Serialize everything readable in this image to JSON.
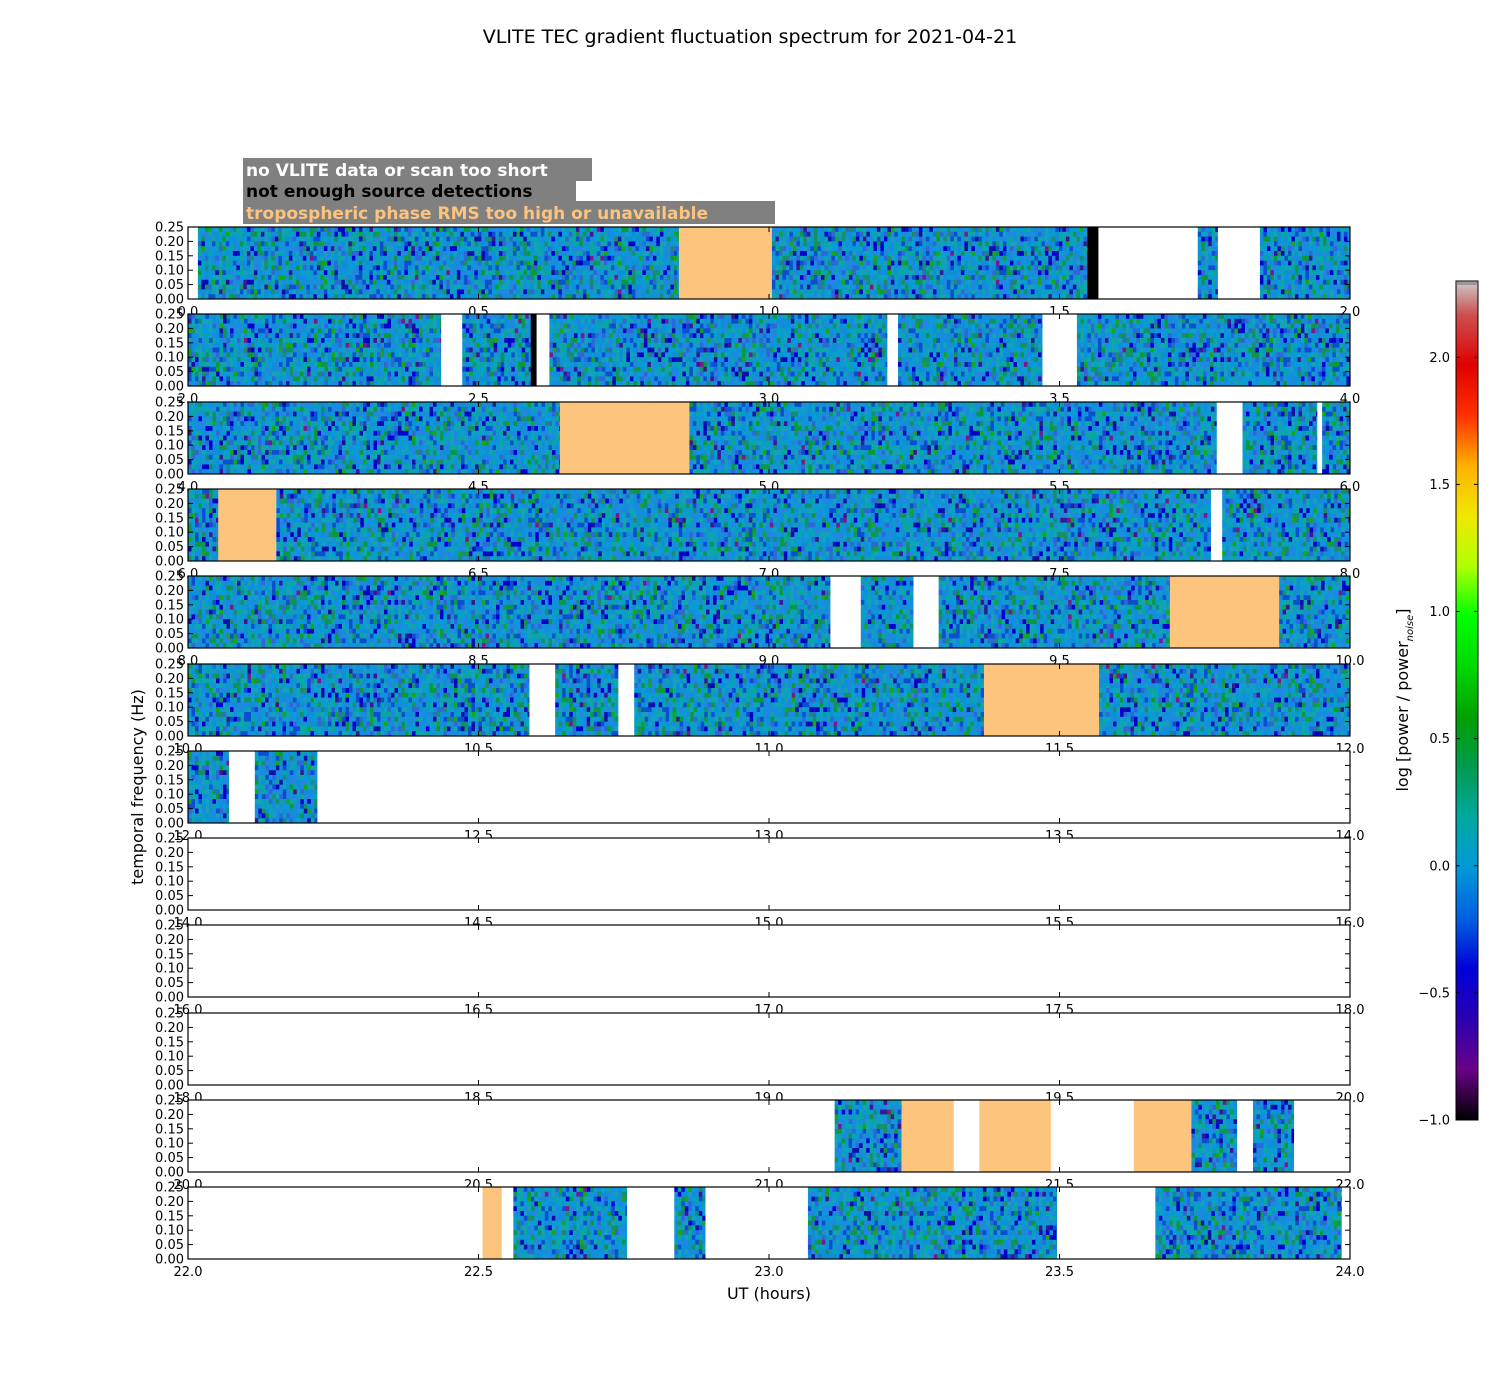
{
  "chart_data": {
    "type": "heatmap",
    "title": "VLITE TEC gradient fluctuation spectrum for 2021-04-21",
    "xlabel": "UT (hours)",
    "ylabel": "temporal frequency (Hz)",
    "ylim": [
      0,
      0.25
    ],
    "yticks": [
      "0.00",
      "0.05",
      "0.10",
      "0.15",
      "0.20",
      "0.25"
    ],
    "colorbar": {
      "label": "log [power / power",
      "label_sub": "noise",
      "label_end": "]",
      "range": [
        -1.0,
        2.3
      ],
      "ticks": [
        "−1.0",
        "−0.5",
        "0.0",
        "0.5",
        "1.0",
        "1.5",
        "2.0"
      ],
      "tick_values": [
        -1.0,
        -0.5,
        0.0,
        0.5,
        1.0,
        1.5,
        2.0
      ],
      "colormap": "nipy_spectral"
    },
    "legend": [
      {
        "text": "no VLITE data or scan too short",
        "color": "#ffffff",
        "box": "#808080"
      },
      {
        "text": "not enough source detections",
        "color": "#000000",
        "box": "#808080"
      },
      {
        "text": "tropospheric phase RMS too high or unavailable",
        "color": "#fdc47d",
        "box": "#808080"
      }
    ],
    "flag_colors": {
      "spectrum": "spectrum",
      "nodata": "#ffffff",
      "fewdet": "#000000",
      "tropo": "#fdc47d"
    },
    "panels": [
      {
        "xlim": [
          0,
          2
        ],
        "xticks": [
          "0.0",
          "0.5",
          "1.0",
          "1.5",
          "2.0"
        ],
        "segments": [
          [
            0,
            0.017,
            "nodata"
          ],
          [
            0.017,
            0.845,
            "spectrum"
          ],
          [
            0.845,
            1.005,
            "tropo"
          ],
          [
            1.005,
            1.548,
            "spectrum"
          ],
          [
            1.548,
            1.567,
            "fewdet"
          ],
          [
            1.567,
            1.738,
            "nodata"
          ],
          [
            1.738,
            1.772,
            "spectrum"
          ],
          [
            1.772,
            1.845,
            "nodata"
          ],
          [
            1.845,
            2.0,
            "spectrum"
          ]
        ]
      },
      {
        "xlim": [
          2,
          4
        ],
        "xticks": [
          "2.0",
          "2.5",
          "3.0",
          "3.5",
          "4.0"
        ],
        "segments": [
          [
            2.0,
            2.435,
            "spectrum"
          ],
          [
            2.435,
            2.472,
            "nodata"
          ],
          [
            2.472,
            2.59,
            "spectrum"
          ],
          [
            2.59,
            2.6,
            "fewdet"
          ],
          [
            2.6,
            2.605,
            "nodata"
          ],
          [
            2.605,
            2.622,
            "nodata"
          ],
          [
            2.622,
            3.203,
            "spectrum"
          ],
          [
            3.203,
            3.222,
            "nodata"
          ],
          [
            3.222,
            3.47,
            "spectrum"
          ],
          [
            3.47,
            3.53,
            "nodata"
          ],
          [
            3.53,
            4.0,
            "spectrum"
          ]
        ]
      },
      {
        "xlim": [
          4,
          6
        ],
        "xticks": [
          "4.0",
          "4.5",
          "5.0",
          "5.5",
          "6.0"
        ],
        "segments": [
          [
            4.0,
            4.64,
            "spectrum"
          ],
          [
            4.64,
            4.863,
            "tropo"
          ],
          [
            4.863,
            5.77,
            "spectrum"
          ],
          [
            5.77,
            5.815,
            "nodata"
          ],
          [
            5.815,
            5.943,
            "spectrum"
          ],
          [
            5.943,
            5.952,
            "nodata"
          ],
          [
            5.952,
            6.0,
            "spectrum"
          ]
        ]
      },
      {
        "xlim": [
          6,
          8
        ],
        "xticks": [
          "6.0",
          "6.5",
          "7.0",
          "7.5",
          "8.0"
        ],
        "segments": [
          [
            6.0,
            6.052,
            "spectrum"
          ],
          [
            6.052,
            6.152,
            "tropo"
          ],
          [
            6.152,
            7.76,
            "spectrum"
          ],
          [
            7.76,
            7.78,
            "nodata"
          ],
          [
            7.78,
            8.0,
            "spectrum"
          ]
        ]
      },
      {
        "xlim": [
          8,
          10
        ],
        "xticks": [
          "8.0",
          "8.5",
          "9.0",
          "9.5",
          "10.0"
        ],
        "segments": [
          [
            8.0,
            9.105,
            "spectrum"
          ],
          [
            9.105,
            9.158,
            "nodata"
          ],
          [
            9.158,
            9.248,
            "spectrum"
          ],
          [
            9.248,
            9.292,
            "nodata"
          ],
          [
            9.292,
            9.69,
            "spectrum"
          ],
          [
            9.69,
            9.878,
            "tropo"
          ],
          [
            9.878,
            10.0,
            "spectrum"
          ]
        ]
      },
      {
        "xlim": [
          10,
          12
        ],
        "xticks": [
          "10.0",
          "10.5",
          "11.0",
          "11.5",
          "12.0"
        ],
        "segments": [
          [
            10.0,
            10.587,
            "spectrum"
          ],
          [
            10.587,
            10.632,
            "nodata"
          ],
          [
            10.632,
            10.74,
            "spectrum"
          ],
          [
            10.74,
            10.768,
            "nodata"
          ],
          [
            10.768,
            11.37,
            "spectrum"
          ],
          [
            11.37,
            11.568,
            "tropo"
          ],
          [
            11.568,
            12.0,
            "spectrum"
          ]
        ]
      },
      {
        "xlim": [
          12,
          14
        ],
        "xticks": [
          "12.0",
          "12.5",
          "13.0",
          "13.5",
          "14.0"
        ],
        "segments": [
          [
            12.0,
            12.07,
            "spectrum"
          ],
          [
            12.07,
            12.115,
            "nodata"
          ],
          [
            12.115,
            12.222,
            "spectrum"
          ],
          [
            12.222,
            14.0,
            "nodata"
          ]
        ]
      },
      {
        "xlim": [
          14,
          16
        ],
        "xticks": [
          "14.0",
          "14.5",
          "15.0",
          "15.5",
          "16.0"
        ],
        "segments": [
          [
            14.0,
            16.0,
            "nodata"
          ]
        ]
      },
      {
        "xlim": [
          16,
          18
        ],
        "xticks": [
          "16.0",
          "16.5",
          "17.0",
          "17.5",
          "18.0"
        ],
        "segments": [
          [
            16.0,
            18.0,
            "nodata"
          ]
        ]
      },
      {
        "xlim": [
          18,
          20
        ],
        "xticks": [
          "18.0",
          "18.5",
          "19.0",
          "19.5",
          "20.0"
        ],
        "segments": [
          [
            18.0,
            20.0,
            "nodata"
          ]
        ]
      },
      {
        "xlim": [
          20,
          22
        ],
        "xticks": [
          "20.0",
          "20.5",
          "21.0",
          "21.5",
          "22.0"
        ],
        "segments": [
          [
            20.0,
            21.113,
            "nodata"
          ],
          [
            21.113,
            21.228,
            "spectrum"
          ],
          [
            21.228,
            21.318,
            "tropo"
          ],
          [
            21.318,
            21.362,
            "nodata"
          ],
          [
            21.362,
            21.485,
            "tropo"
          ],
          [
            21.485,
            21.628,
            "nodata"
          ],
          [
            21.628,
            21.727,
            "tropo"
          ],
          [
            21.727,
            21.805,
            "spectrum"
          ],
          [
            21.805,
            21.833,
            "nodata"
          ],
          [
            21.833,
            21.903,
            "spectrum"
          ],
          [
            21.903,
            22.0,
            "nodata"
          ]
        ]
      },
      {
        "xlim": [
          22,
          24
        ],
        "xticks": [
          "22.0",
          "22.5",
          "23.0",
          "23.5",
          "24.0"
        ],
        "segments": [
          [
            22.0,
            22.507,
            "nodata"
          ],
          [
            22.507,
            22.54,
            "tropo"
          ],
          [
            22.54,
            22.56,
            "nodata"
          ],
          [
            22.56,
            22.755,
            "spectrum"
          ],
          [
            22.755,
            22.837,
            "nodata"
          ],
          [
            22.837,
            22.89,
            "spectrum"
          ],
          [
            22.89,
            23.067,
            "nodata"
          ],
          [
            23.067,
            23.495,
            "spectrum"
          ],
          [
            23.495,
            23.665,
            "nodata"
          ],
          [
            23.665,
            23.985,
            "spectrum"
          ],
          [
            23.985,
            24.0,
            "nodata"
          ]
        ]
      }
    ]
  }
}
